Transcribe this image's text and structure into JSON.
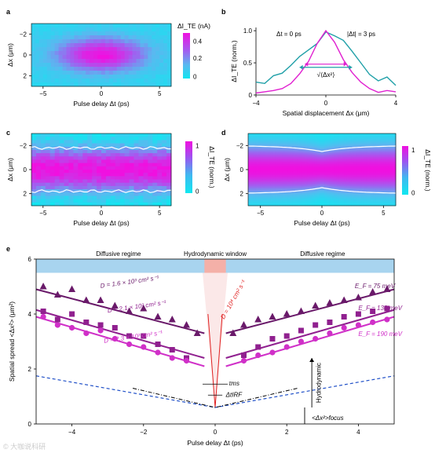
{
  "chart_data": [
    {
      "panel": "a",
      "type": "heatmap",
      "xlabel": "Pulse delay Δt (ps)",
      "ylabel": "Δx (μm)",
      "xticks": [
        "−5",
        "0",
        "5"
      ],
      "yticks": [
        "−2",
        "0",
        "2"
      ],
      "xlim": [
        -6,
        6
      ],
      "ylim": [
        -3,
        3
      ],
      "colorbar_title": "ΔI_TE (nA)",
      "colorbar_ticks": [
        "0.4",
        "0.2",
        "0"
      ],
      "colorbar_range": [
        0,
        0.5
      ],
      "peak": {
        "dt": 0,
        "dx": 0,
        "value": 0.5
      }
    },
    {
      "panel": "b",
      "type": "line",
      "xlabel": "Spatial displacement Δx (μm)",
      "ylabel": "ΔI_TE (norm.)",
      "xticks": [
        "−4",
        "0",
        "4"
      ],
      "yticks": [
        "1.0",
        "0.5",
        "0"
      ],
      "xlim": [
        -4,
        4
      ],
      "ylim": [
        0,
        1.05
      ],
      "series": [
        {
          "name": "Δt = 0 ps",
          "color": "#e020d0",
          "x": [
            -4,
            -3.5,
            -3,
            -2.5,
            -2,
            -1.5,
            -1,
            -0.5,
            0,
            0.5,
            1,
            1.5,
            2,
            2.5,
            3,
            3.5,
            4
          ],
          "y": [
            0.03,
            0.05,
            0.07,
            0.1,
            0.18,
            0.33,
            0.52,
            0.8,
            1.0,
            0.82,
            0.55,
            0.35,
            0.2,
            0.1,
            0.04,
            0.07,
            0.05
          ]
        },
        {
          "name": "|Δt| = 3 ps",
          "color": "#20a0a8",
          "x": [
            -4,
            -3.5,
            -3,
            -2.5,
            -2,
            -1.5,
            -1,
            -0.5,
            0,
            0.5,
            1,
            1.5,
            2,
            2.5,
            3,
            3.5,
            4
          ],
          "y": [
            0.2,
            0.18,
            0.3,
            0.34,
            0.46,
            0.6,
            0.7,
            0.8,
            0.98,
            0.92,
            0.85,
            0.68,
            0.5,
            0.32,
            0.22,
            0.28,
            0.15
          ]
        }
      ],
      "annotation": "√⟨Δx²⟩"
    },
    {
      "panel": "c",
      "type": "heatmap",
      "xlabel": "Pulse delay Δt (ps)",
      "ylabel": "Δx (μm)",
      "xticks": [
        "−5",
        "0",
        "5"
      ],
      "yticks": [
        "−2",
        "0",
        "2"
      ],
      "xlim": [
        -6,
        6
      ],
      "ylim": [
        -3,
        3
      ],
      "colorbar_title": "ΔI_TE (norm.)",
      "colorbar_ticks": [
        "1",
        "0"
      ],
      "contour_dx": 1.8
    },
    {
      "panel": "d",
      "type": "heatmap",
      "xlabel": "Pulse delay Δt (ps)",
      "ylabel": "Δx (μm)",
      "xticks": [
        "−5",
        "0",
        "5"
      ],
      "yticks": [
        "−2",
        "0",
        "2"
      ],
      "xlim": [
        -6,
        6
      ],
      "ylim": [
        -3,
        3
      ],
      "colorbar_title": "ΔI_TE (norm.)",
      "colorbar_ticks": [
        "1",
        "0"
      ],
      "contour_dx_edge": 2.0,
      "contour_dx_center": 1.5
    },
    {
      "panel": "e",
      "type": "scatter",
      "xlabel": "Pulse delay Δt (ps)",
      "ylabel": "Spatial spread <Δx²> (μm²)",
      "xticks": [
        "−4",
        "−2",
        "0",
        "2",
        "4"
      ],
      "yticks": [
        "6",
        "4",
        "2",
        "0"
      ],
      "xlim": [
        -5,
        5
      ],
      "ylim": [
        0,
        6
      ],
      "regimes": [
        "Diffusive regime",
        "Hydrodynamic window",
        "Diffusive regime"
      ],
      "series": [
        {
          "name": "E_F = 75 meV",
          "marker": "triangle",
          "color": "#6a1a6a",
          "x": [
            -4.8,
            -4.4,
            -4.0,
            -3.6,
            -3.2,
            -2.8,
            -2.4,
            -2.0,
            -1.6,
            -1.2,
            -0.8,
            -0.5,
            0.5,
            0.8,
            1.2,
            1.6,
            2.0,
            2.4,
            2.8,
            3.2,
            3.6,
            4.0,
            4.4,
            4.8
          ],
          "y": [
            5.0,
            4.7,
            4.9,
            4.5,
            4.5,
            4.3,
            4.1,
            4.2,
            3.9,
            3.8,
            3.6,
            3.3,
            3.3,
            3.6,
            3.8,
            3.9,
            4.0,
            4.1,
            4.3,
            4.4,
            4.5,
            4.6,
            4.8,
            4.9
          ],
          "fit_label": "D = 1.6 × 10³ cm² s⁻¹"
        },
        {
          "name": "E_F = 130 meV",
          "marker": "square",
          "color": "#90208f",
          "x": [
            -4.8,
            -4.4,
            -4.0,
            -3.6,
            -3.2,
            -2.8,
            -2.4,
            -2.0,
            -1.6,
            -1.2,
            -0.8,
            0.8,
            1.2,
            1.6,
            2.0,
            2.4,
            2.8,
            3.2,
            3.6,
            4.0,
            4.4,
            4.8
          ],
          "y": [
            4.1,
            3.8,
            4.0,
            3.7,
            3.6,
            3.5,
            3.2,
            3.2,
            2.9,
            2.7,
            2.4,
            2.5,
            2.8,
            3.1,
            3.2,
            3.4,
            3.6,
            3.7,
            3.9,
            4.0,
            4.1,
            4.2
          ],
          "fit_label": "D = 2.1 × 10³ cm² s⁻¹"
        },
        {
          "name": "E_F = 190 meV",
          "marker": "circle",
          "color": "#d030c8",
          "x": [
            -4.8,
            -4.4,
            -4.0,
            -3.6,
            -3.2,
            -2.8,
            -2.4,
            -2.0,
            -1.6,
            -1.2,
            -0.8,
            0.8,
            1.2,
            1.6,
            2.0,
            2.4,
            2.8,
            3.2,
            3.6,
            4.0,
            4.4,
            4.8
          ],
          "y": [
            3.9,
            3.6,
            3.5,
            3.3,
            3.4,
            3.1,
            2.9,
            2.8,
            2.6,
            2.4,
            2.3,
            2.3,
            2.5,
            2.6,
            2.8,
            3.0,
            3.1,
            3.3,
            3.5,
            3.6,
            3.7,
            3.8
          ],
          "fit_label": "D = 2.3 × 10³ cm² s⁻¹"
        }
      ],
      "hydro_label": "D = 10⁴ cm² s⁻¹",
      "baseline_label": "<Δx²>focus",
      "hydrodynamic_label": "Hydrodynamic",
      "tau_label": "τms",
      "irf_label": "ΔtIRF"
    }
  ],
  "labels": {
    "a": "a",
    "b": "b",
    "c": "c",
    "d": "d",
    "e": "e",
    "legend_dt0": "Δt = 0 ps",
    "legend_dt3": "|Δt| = 3 ps",
    "watermark": "© 大咖说科研"
  }
}
